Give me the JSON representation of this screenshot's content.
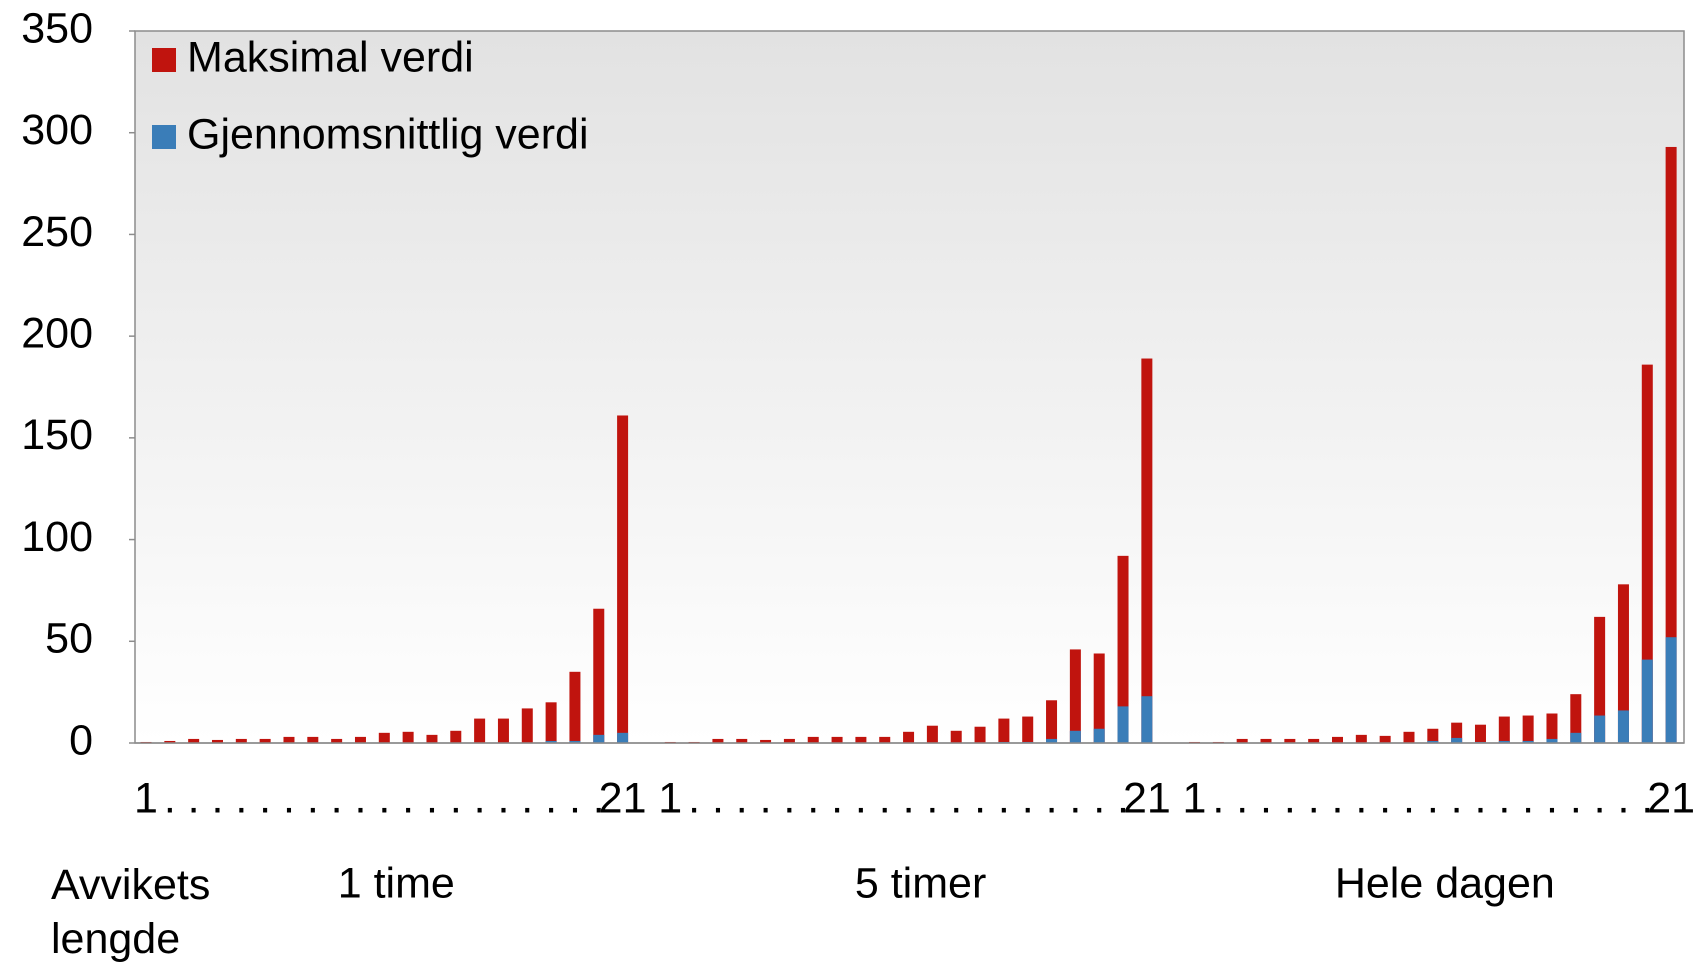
{
  "chart_data": {
    "type": "bar",
    "x_label": "Avvikets lengde",
    "groups": [
      "1 time",
      "5 timer",
      "Hele dagen"
    ],
    "categories": [
      "1",
      ".",
      ".",
      ".",
      ".",
      ".",
      ".",
      ".",
      ".",
      ".",
      ".",
      ".",
      ".",
      ".",
      ".",
      ".",
      ".",
      ".",
      ".",
      ".",
      "21",
      "1",
      ".",
      ".",
      ".",
      ".",
      ".",
      ".",
      ".",
      ".",
      ".",
      ".",
      ".",
      ".",
      ".",
      ".",
      ".",
      ".",
      ".",
      ".",
      ".",
      "21",
      "1",
      ".",
      ".",
      ".",
      ".",
      ".",
      ".",
      ".",
      ".",
      ".",
      ".",
      ".",
      ".",
      ".",
      ".",
      ".",
      ".",
      ".",
      ".",
      ".",
      "21"
    ],
    "series": [
      {
        "name": "Maksimal verdi",
        "color": "#c0140e",
        "values": [
          0.5,
          1,
          2,
          1.5,
          2,
          2,
          3,
          3,
          2,
          3,
          5,
          5.5,
          4,
          6,
          12,
          12,
          17,
          20,
          35,
          66,
          161,
          0.5,
          0.5,
          2,
          2,
          1.5,
          2,
          3,
          3,
          3,
          3,
          5.5,
          8.5,
          6,
          8,
          12,
          13,
          21,
          46,
          44,
          92,
          189,
          0.5,
          0.5,
          2,
          2,
          2,
          2,
          3,
          4,
          3.5,
          5.5,
          7,
          10,
          9,
          13,
          13.5,
          14.5,
          24,
          62,
          78,
          186,
          293
        ]
      },
      {
        "name": "Gjennomsnittlig verdi",
        "color": "#3a7db8",
        "values": [
          0,
          0,
          0,
          0,
          0,
          0,
          0,
          0,
          0,
          0,
          0,
          0,
          0,
          0,
          0,
          0,
          0,
          1,
          1,
          4,
          5,
          0,
          0,
          0,
          0,
          0,
          0,
          0,
          0,
          0,
          0,
          0,
          0,
          0,
          0,
          0.5,
          0.5,
          2,
          6,
          7,
          18,
          23,
          0,
          0,
          0,
          0,
          0,
          0,
          0,
          0,
          0,
          0,
          1,
          2.5,
          0.5,
          1,
          1,
          2,
          5,
          13.5,
          16,
          41,
          52
        ]
      }
    ],
    "ylim": [
      0,
      350
    ],
    "yticks": [
      0,
      50,
      100,
      150,
      200,
      250,
      300,
      350
    ],
    "legend": "upper left"
  }
}
